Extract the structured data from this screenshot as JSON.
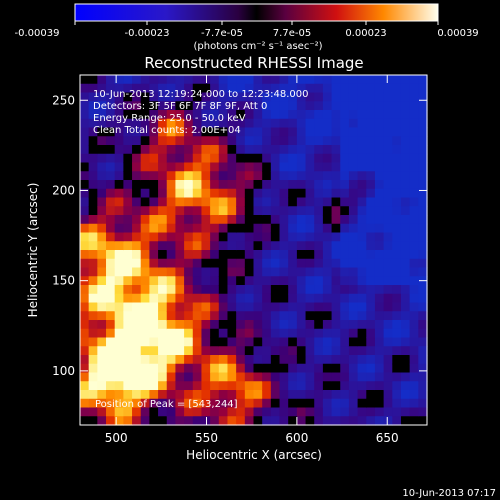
{
  "chart_data": {
    "type": "heatmap",
    "title": "Reconstructed RHESSI Image",
    "xlabel": "Heliocentric X (arcsec)",
    "ylabel": "Heliocentric Y (arcsec)",
    "xlim": [
      480,
      672
    ],
    "ylim": [
      70,
      264
    ],
    "x_ticks": [
      "500",
      "550",
      "600",
      "650"
    ],
    "y_ticks": [
      "100",
      "150",
      "200",
      "250"
    ],
    "x_tick_values": [
      500,
      550,
      600,
      650
    ],
    "y_tick_values": [
      100,
      150,
      200,
      250
    ],
    "colorbar": {
      "tick_labels": [
        "-0.00039",
        "-0.00023",
        "-7.7e-05",
        "7.7e-05",
        "0.00023",
        "0.00039"
      ],
      "unit_label": "(photons cm⁻² s⁻¹ asec⁻²)",
      "range": [
        -0.00039,
        0.00039
      ]
    },
    "annotations": [
      "10-Jun-2013 12:19:24.000 to 12:23:48.000",
      "Detectors: 3F 5F 6F 7F 8F 9F, Att 0",
      "Energy Range: 25.0 - 50.0 keV",
      "Clean     Total counts: 2.00E+04"
    ],
    "peak_label": "Position of Peak = [543,244]",
    "timestamp": "10-Jun-2013 07:17",
    "colors": {
      "hot_low": "#3a007a",
      "hot_mid": "#e43a00",
      "hot_high": "#ffffcc",
      "cool": "#2030c8"
    }
  }
}
